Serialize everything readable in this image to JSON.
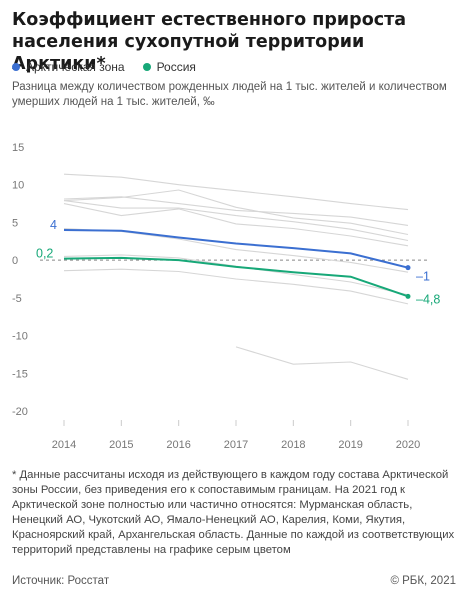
{
  "title": "Коэффициент естественного прироста населения сухопутной территории Арктики*",
  "legend": {
    "arctic_label": "Арктическая зона",
    "russia_label": "Россия"
  },
  "subtitle": "Разница между количеством рожденных людей на 1 тыс. жителей и количеством умерших людей на 1 тыс. жителей, ‰",
  "note": "* Данные рассчитаны исходя из действующего в каждом году состава Арктической зоны России, без приведения его к сопоставимым границам. На 2021 год к Арктической зоне полностью или частично относятся: Мурманская область, Ненецкий АО, Чукотский АО, Ямало-Ненецкий АО, Карелия, Коми, Якутия, Красноярский край, Архангельская область. Данные по каждой из соответствующих территорий представлены на графике серым цветом",
  "source": "Источник: Росстат",
  "copyright": "© РБК, 2021",
  "colors": {
    "arctic": "#3b6fd1",
    "russia": "#17a878",
    "regions": "#d6d6d6",
    "zero_line": "#888888"
  },
  "chart_data": {
    "type": "line",
    "x": [
      2014,
      2015,
      2016,
      2017,
      2018,
      2019,
      2020
    ],
    "ylim": [
      -20,
      15
    ],
    "yticks": [
      15,
      10,
      5,
      0,
      -5,
      -10,
      -15,
      -20
    ],
    "series": [
      {
        "name": "Арктическая зона",
        "values": [
          4,
          3.9,
          3,
          2.2,
          1.6,
          0.9,
          -1
        ],
        "labels": {
          "first": "4",
          "last": "–1"
        }
      },
      {
        "name": "Россия",
        "values": [
          0.2,
          0.3,
          0,
          -0.9,
          -1.6,
          -2.2,
          -4.8
        ],
        "labels": {
          "first": "0,2",
          "last": "–4,8"
        }
      }
    ],
    "regions": [
      [
        11.4,
        11,
        10,
        9.2,
        8.4,
        7.5,
        6.7
      ],
      [
        8.1,
        8.4,
        7.5,
        6.6,
        6.2,
        5.7,
        4.6
      ],
      [
        7.9,
        8.3,
        9.3,
        7,
        5.6,
        4.9,
        3.4
      ],
      [
        7.9,
        6.9,
        6.9,
        5.9,
        5.1,
        4.1,
        2.6
      ],
      [
        7.5,
        5.9,
        6.8,
        4.8,
        4.2,
        3.2,
        1.9
      ],
      [
        4.2,
        3.8,
        2.8,
        1.4,
        0.6,
        -0.3,
        -1.6
      ],
      [
        0.5,
        0.7,
        0.3,
        -0.8,
        -1.9,
        -2.9,
        -4.6
      ],
      [
        -1.4,
        -1.2,
        -1.5,
        -2.5,
        -3.2,
        -4.1,
        -5.8
      ],
      [
        null,
        null,
        null,
        -11.5,
        -13.8,
        -13.5,
        -15.8
      ]
    ]
  }
}
